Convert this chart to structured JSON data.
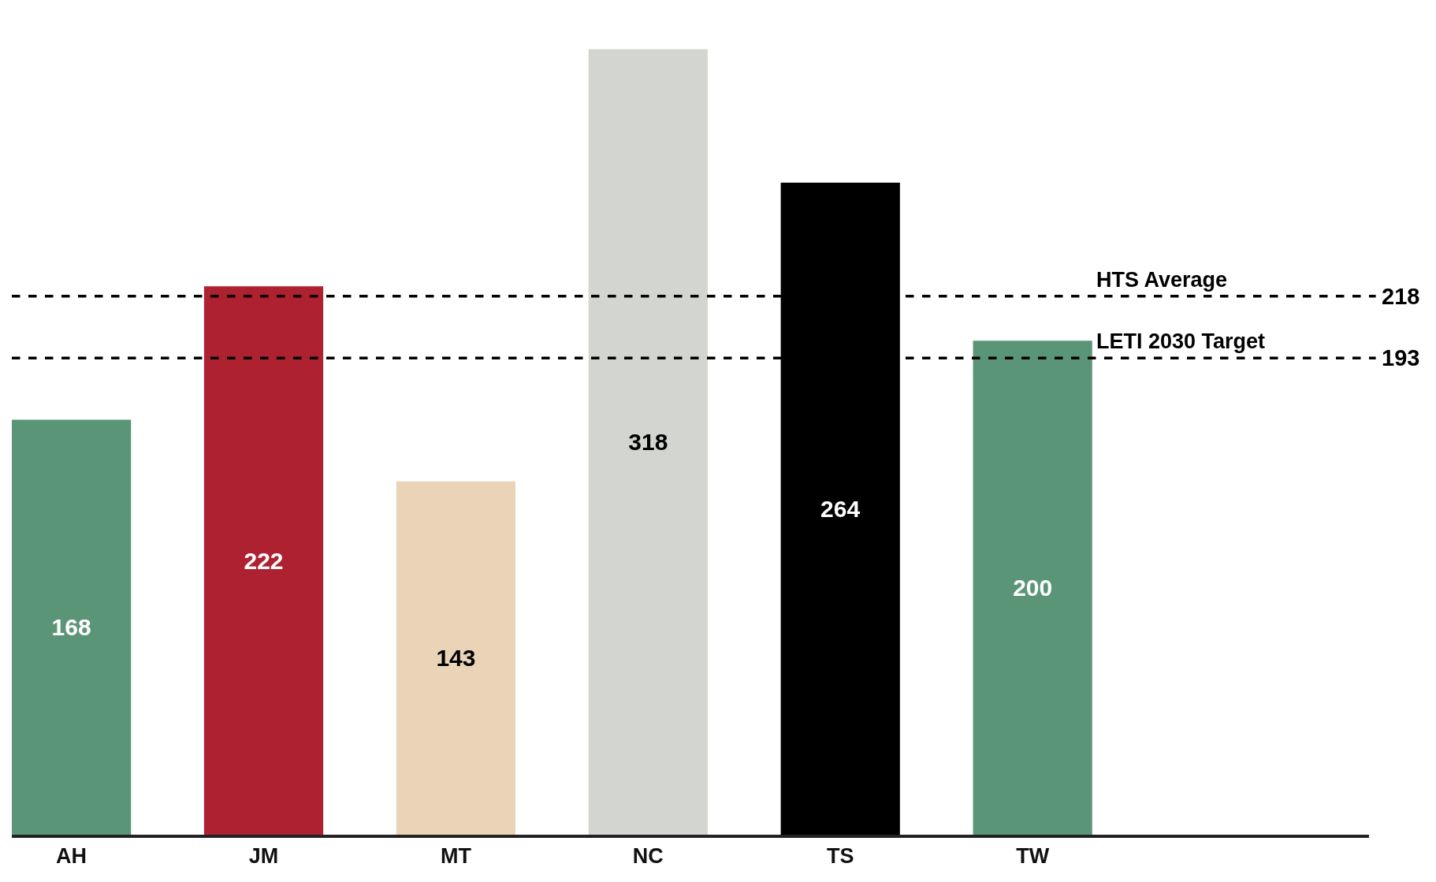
{
  "chart_data": {
    "type": "bar",
    "categories": [
      "AH",
      "JM",
      "MT",
      "NC",
      "TS",
      "TW"
    ],
    "values": [
      168,
      222,
      143,
      318,
      264,
      200
    ],
    "colors": [
      "#5a9577",
      "#ae2130",
      "#ead4b8",
      "#d3d5d0",
      "#000000",
      "#5a9577"
    ],
    "data_labels": true,
    "tick_labels": "x",
    "legend": false,
    "ref_lines": [
      {
        "axis": "y",
        "value": 218,
        "label": "HTS Average",
        "color": "#000000",
        "line_style": "dashed"
      },
      {
        "axis": "y",
        "value": 193,
        "label": "LETI 2030 Target",
        "color": "#000000",
        "line_style": "dashed"
      }
    ],
    "annotations": [
      "218",
      "193"
    ]
  }
}
